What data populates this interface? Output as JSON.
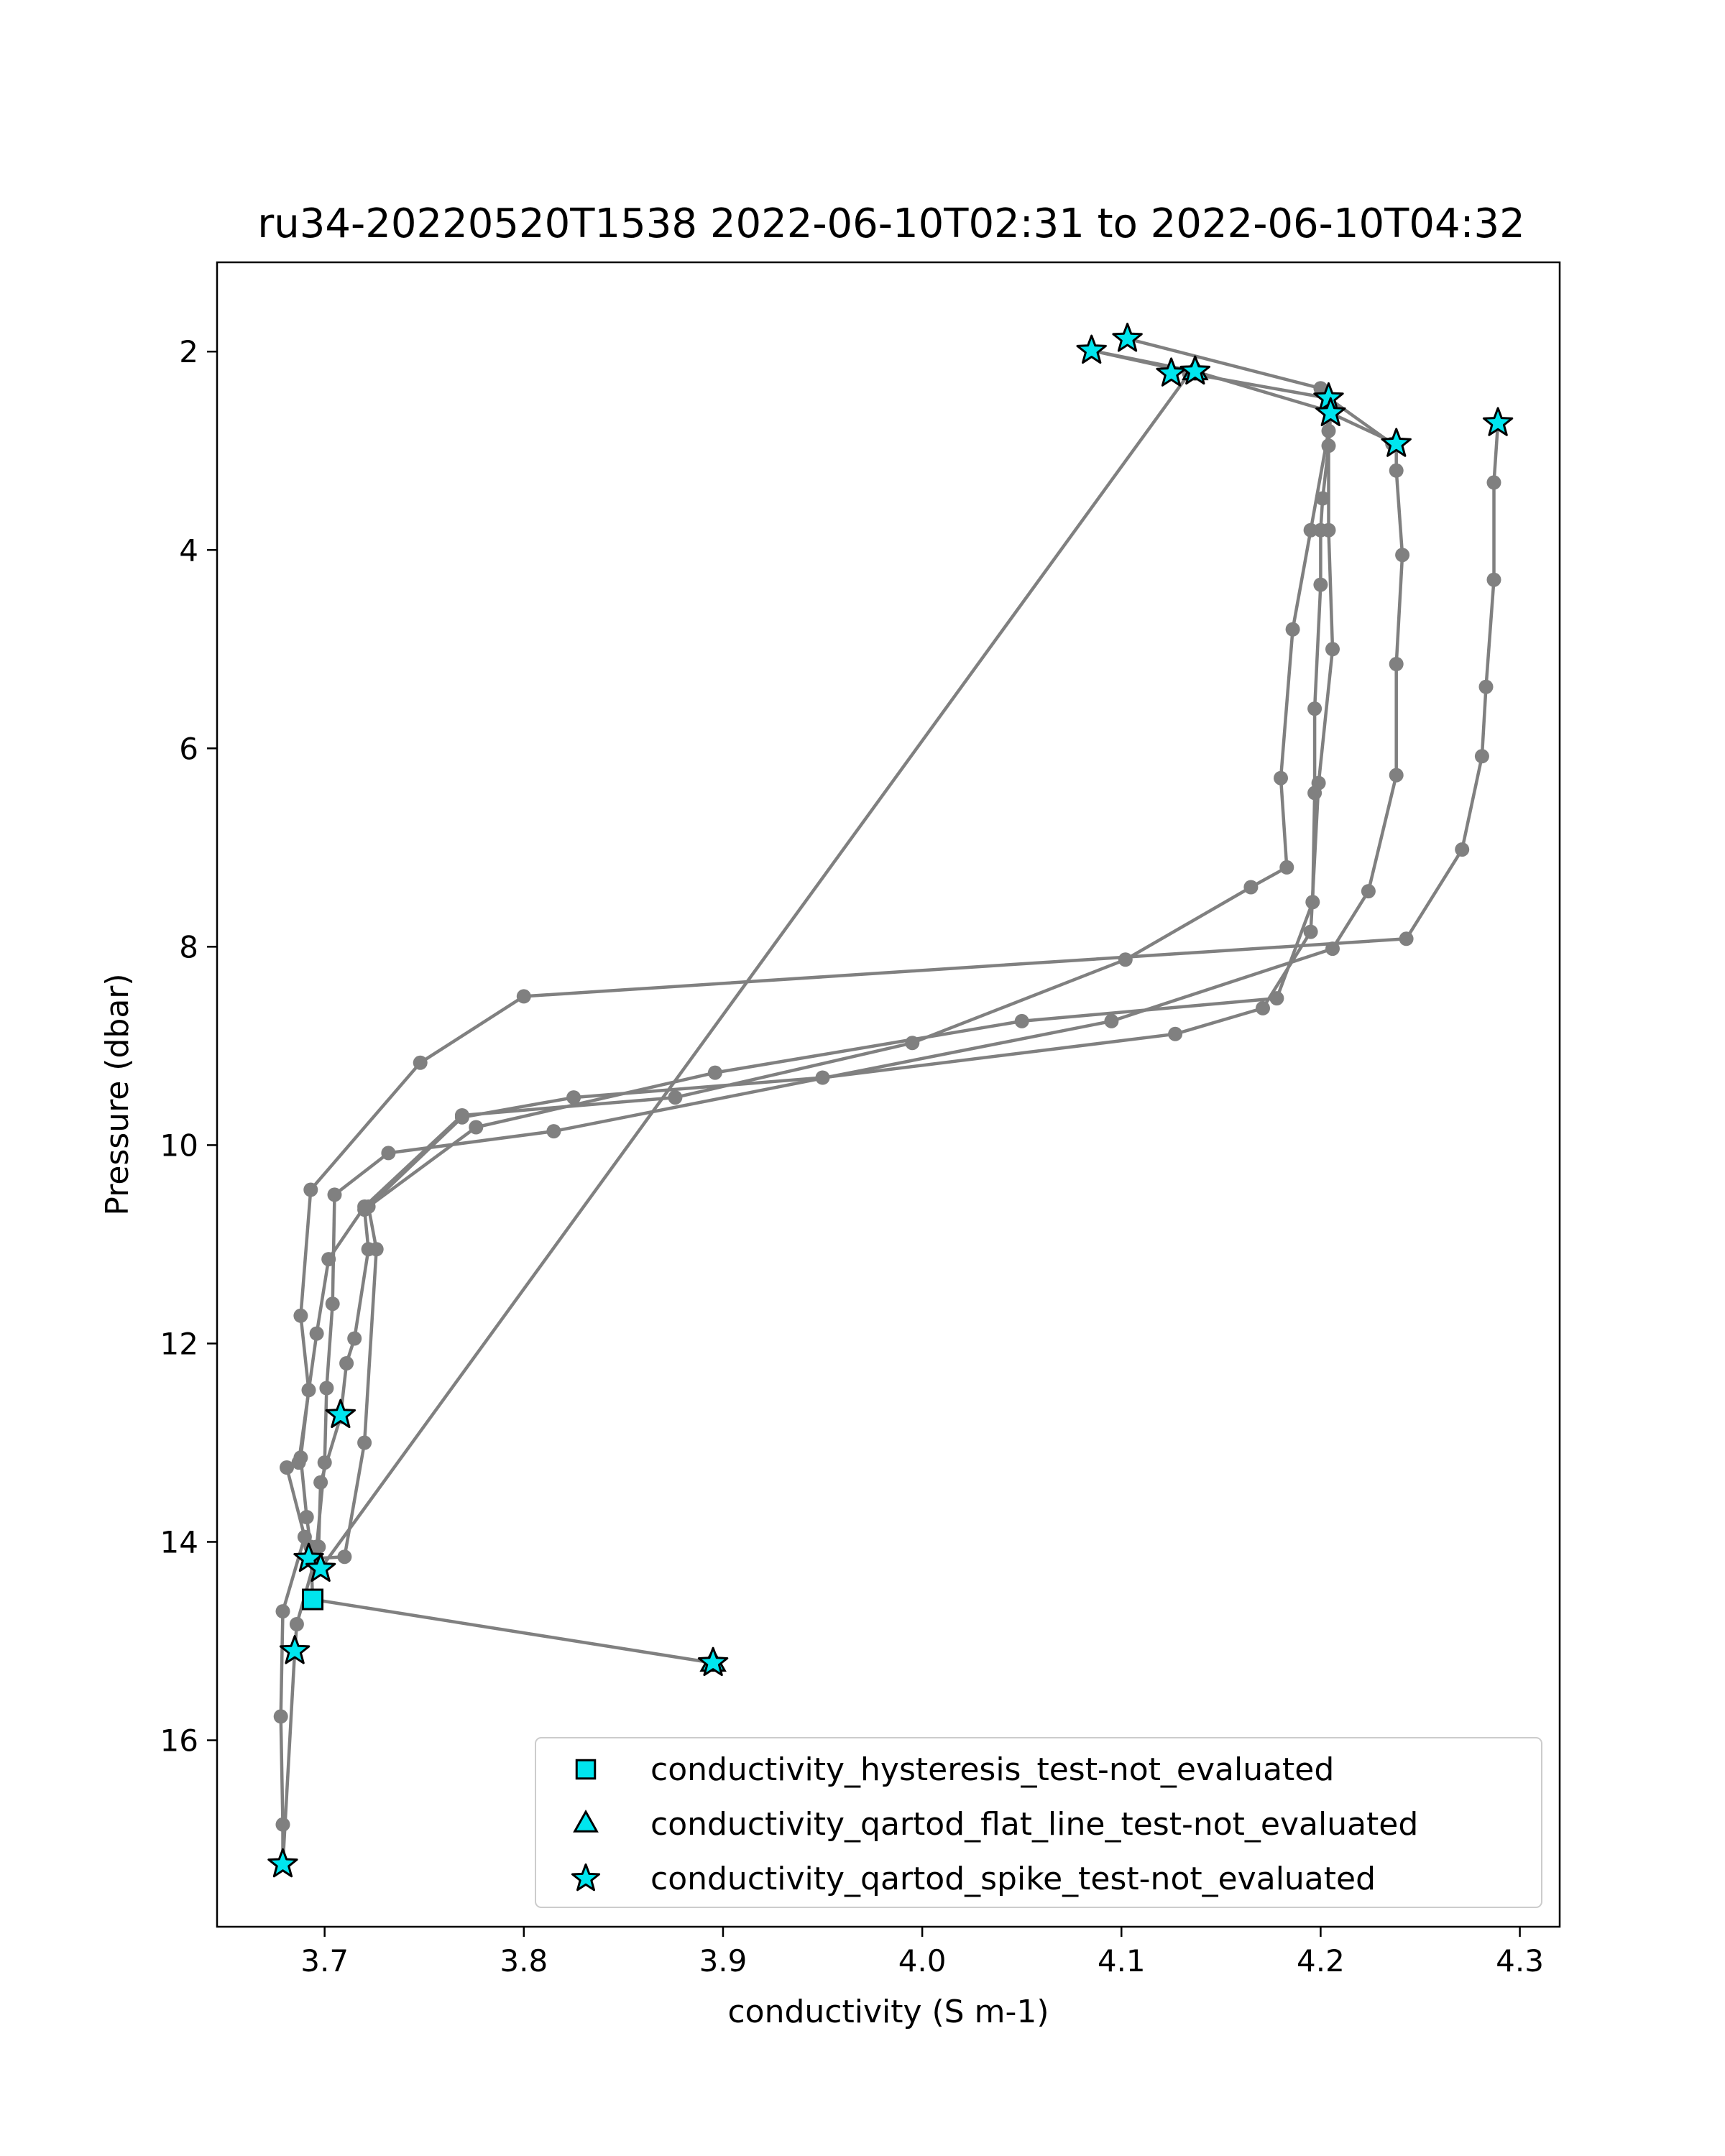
{
  "chart_data": {
    "type": "scatter",
    "title": "ru34-20220520T1538 2022-06-10T02:31 to 2022-06-10T04:32",
    "xlabel": "conductivity (S m-1)",
    "ylabel": "Pressure (dbar)",
    "xlim": [
      3.646,
      4.32
    ],
    "ylim": [
      17.88,
      1.1
    ],
    "y_inverted": true,
    "xticks": [
      3.7,
      3.8,
      3.9,
      4.0,
      4.1,
      4.2,
      4.3
    ],
    "xtick_labels": [
      "3.7",
      "3.8",
      "3.9",
      "4.0",
      "4.1",
      "4.2",
      "4.3"
    ],
    "yticks": [
      2,
      4,
      6,
      8,
      10,
      12,
      14,
      16
    ],
    "ytick_labels": [
      "2",
      "4",
      "6",
      "8",
      "10",
      "12",
      "14",
      "16"
    ],
    "grid": false,
    "legend_position": "bottom-right",
    "profile_color": "#808080",
    "flag_color": "#00e5ee",
    "flag_edge_color": "#000000",
    "profile": {
      "x": [
        4.1,
        4.2,
        4.2,
        4.19,
        4.19,
        4.19,
        4.18,
        4.17,
        4.1,
        4.0,
        3.88,
        3.77,
        3.72,
        3.7,
        3.7,
        3.7,
        3.69,
        3.69,
        3.68,
        3.68,
        3.68,
        3.69,
        3.69,
        3.7,
        3.7,
        3.71,
        3.71,
        3.72,
        3.72,
        3.77,
        3.9,
        4.05,
        4.18,
        4.2,
        4.2,
        4.2,
        4.2,
        4.2,
        4.2,
        4.2,
        4.2,
        4.21,
        4.24,
        4.24,
        4.24,
        4.24,
        4.24,
        4.24,
        4.23,
        4.22,
        4.21,
        4.2,
        4.08,
        3.8,
        3.73,
        3.72,
        3.71,
        3.71,
        3.7,
        3.7,
        3.69,
        3.69,
        3.69,
        3.69,
        3.7,
        4.29,
        4.29,
        4.29,
        4.28,
        4.28,
        4.27,
        4.24,
        3.75,
        3.69,
        3.69,
        3.69,
        3.69,
        3.69,
        3.69,
        3.69,
        3.89,
        3.69,
        3.7,
        3.71,
        3.72,
        3.73,
        3.82,
        4.13,
        4.17,
        4.19,
        4.19,
        4.19,
        4.19,
        4.19,
        4.2,
        4.14,
        4.08
      ],
      "y": [
        1.87,
        2.37,
        2.8,
        3.8,
        4.8,
        6.3,
        7.2,
        7.4,
        8.13,
        9.0,
        9.5,
        9.7,
        10.6,
        11.15,
        11.9,
        12.8,
        13.25,
        13.95,
        14.7,
        15.8,
        16.85,
        17.25,
        15.1,
        14.85,
        14.05,
        13.4,
        12.75,
        12.2,
        11.65,
        9.8,
        9.27,
        8.75,
        8.5,
        7.5,
        6.5,
        5.6,
        4.3,
        3.8,
        3.5,
        2.95,
        2.65,
        2.95,
        2.97,
        3.2,
        4.05,
        5.15,
        6.27,
        7.22,
        7.44,
        6.4,
        6.95,
        8.02,
        8.95,
        9.5,
        10.1,
        10.62,
        11.05,
        11.6,
        12.45,
        13.2,
        13.5,
        13.95,
        14.15,
        14.27,
        12.7,
        2.72,
        3.32,
        4.3,
        5.38,
        6.08,
        7.02,
        7.92,
        9.15,
        10.45,
        11.72,
        12.47,
        13.15,
        13.75,
        14.05,
        14.58,
        15.22,
        14.58,
        13.9,
        14.15,
        10.7,
        11.05,
        9.85,
        8.88,
        8.62,
        8.35,
        7.85,
        6.35,
        5.0,
        3.8,
        2.6,
        2.2,
        1.99
      ],
      "segments": [
        [
          [
            4.103,
            1.87
          ],
          [
            4.2,
            2.37
          ],
          [
            4.204,
            2.8
          ],
          [
            4.195,
            3.8
          ],
          [
            4.186,
            4.8
          ],
          [
            4.18,
            6.3
          ],
          [
            4.183,
            7.2
          ],
          [
            4.165,
            7.4
          ],
          [
            4.102,
            8.13
          ],
          [
            3.995,
            8.97
          ],
          [
            3.876,
            9.52
          ],
          [
            3.769,
            9.7
          ],
          [
            3.72,
            10.62
          ],
          [
            3.702,
            11.15
          ],
          [
            3.696,
            11.9
          ],
          [
            3.687,
            13.2
          ],
          [
            3.681,
            13.25
          ],
          [
            3.69,
            13.95
          ],
          [
            3.679,
            14.7
          ],
          [
            3.678,
            15.76
          ],
          [
            3.679,
            16.85
          ],
          [
            3.679,
            17.25
          ]
        ],
        [
          [
            3.679,
            17.25
          ],
          [
            3.685,
            15.1
          ],
          [
            3.686,
            14.83
          ],
          [
            3.697,
            14.05
          ],
          [
            3.698,
            13.4
          ],
          [
            3.708,
            12.74
          ],
          [
            3.711,
            12.2
          ],
          [
            3.715,
            11.95
          ],
          [
            3.722,
            11.05
          ],
          [
            3.72,
            10.65
          ],
          [
            3.776,
            9.82
          ],
          [
            3.896,
            9.27
          ],
          [
            4.05,
            8.75
          ],
          [
            4.178,
            8.52
          ],
          [
            4.196,
            7.55
          ],
          [
            4.197,
            6.45
          ],
          [
            4.197,
            5.6
          ],
          [
            4.2,
            4.35
          ],
          [
            4.2,
            3.8
          ],
          [
            4.201,
            3.48
          ],
          [
            4.204,
            2.95
          ],
          [
            4.205,
            2.62
          ]
        ],
        [
          [
            4.205,
            2.62
          ],
          [
            4.238,
            2.93
          ],
          [
            4.238,
            3.2
          ],
          [
            4.241,
            4.05
          ],
          [
            4.238,
            5.15
          ],
          [
            4.238,
            6.27
          ],
          [
            4.224,
            7.44
          ],
          [
            4.206,
            8.02
          ],
          [
            4.095,
            8.75
          ],
          [
            3.815,
            9.86
          ],
          [
            3.732,
            10.08
          ],
          [
            3.705,
            10.5
          ],
          [
            3.704,
            11.6
          ],
          [
            3.701,
            12.45
          ],
          [
            3.7,
            13.2
          ],
          [
            3.696,
            14.05
          ],
          [
            3.698,
            14.27
          ]
        ],
        [
          [
            3.698,
            14.27
          ],
          [
            4.134,
            2.22
          ],
          [
            4.204,
            2.47
          ],
          [
            4.236,
            2.93
          ]
        ],
        [
          [
            4.289,
            2.72
          ],
          [
            4.287,
            3.32
          ],
          [
            4.287,
            4.3
          ],
          [
            4.283,
            5.38
          ],
          [
            4.281,
            6.08
          ],
          [
            4.271,
            7.02
          ],
          [
            4.243,
            7.92
          ],
          [
            3.8,
            8.5
          ],
          [
            3.748,
            9.17
          ],
          [
            3.693,
            10.45
          ],
          [
            3.688,
            11.72
          ],
          [
            3.692,
            12.47
          ],
          [
            3.688,
            13.15
          ],
          [
            3.691,
            13.75
          ],
          [
            3.693,
            14.05
          ],
          [
            3.694,
            14.58
          ],
          [
            3.895,
            15.22
          ]
        ],
        [
          [
            3.693,
            14.17
          ],
          [
            3.71,
            14.15
          ],
          [
            3.72,
            13.0
          ],
          [
            3.726,
            11.05
          ],
          [
            3.722,
            10.62
          ],
          [
            3.769,
            9.72
          ],
          [
            3.825,
            9.52
          ],
          [
            3.95,
            9.32
          ],
          [
            4.127,
            8.88
          ],
          [
            4.171,
            8.62
          ],
          [
            4.195,
            7.85
          ],
          [
            4.199,
            6.35
          ],
          [
            4.206,
            5.0
          ],
          [
            4.204,
            3.8
          ],
          [
            4.204,
            2.6
          ],
          [
            4.137,
            2.2
          ],
          [
            4.085,
            1.99
          ]
        ],
        [
          [
            4.085,
            1.99
          ],
          [
            4.137,
            2.22
          ]
        ]
      ]
    },
    "flags": [
      {
        "test": "conductivity_hysteresis_test-not_evaluated",
        "marker": "square",
        "points": [
          [
            3.694,
            14.58
          ]
        ]
      },
      {
        "test": "conductivity_qartod_flat_line_test-not_evaluated",
        "marker": "triangle",
        "points": [
          [
            3.895,
            15.22
          ],
          [
            4.137,
            2.2
          ]
        ]
      },
      {
        "test": "conductivity_qartod_spike_test-not_evaluated",
        "marker": "star",
        "points": [
          [
            4.103,
            1.87
          ],
          [
            4.085,
            1.99
          ],
          [
            4.125,
            2.22
          ],
          [
            4.137,
            2.2
          ],
          [
            4.204,
            2.47
          ],
          [
            4.205,
            2.62
          ],
          [
            4.238,
            2.93
          ],
          [
            4.289,
            2.72
          ],
          [
            3.708,
            12.72
          ],
          [
            3.692,
            14.17
          ],
          [
            3.698,
            14.27
          ],
          [
            3.685,
            15.1
          ],
          [
            3.895,
            15.22
          ],
          [
            3.679,
            17.25
          ]
        ]
      }
    ],
    "legend": [
      {
        "label": "conductivity_hysteresis_test-not_evaluated",
        "marker": "square"
      },
      {
        "label": "conductivity_qartod_flat_line_test-not_evaluated",
        "marker": "triangle"
      },
      {
        "label": "conductivity_qartod_spike_test-not_evaluated",
        "marker": "star"
      }
    ]
  }
}
